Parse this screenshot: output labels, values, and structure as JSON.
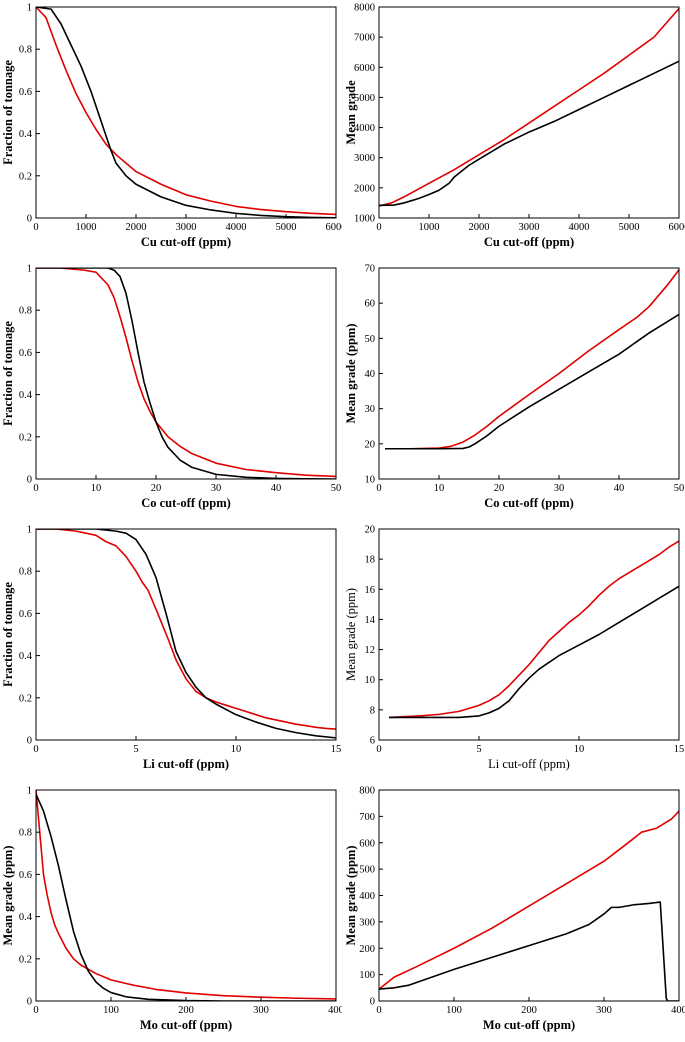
{
  "chart_data": [
    {
      "type": "line",
      "xlabel": "Cu cut-off (ppm)",
      "ylabel": "Fraction of tonnage",
      "xlim": [
        0,
        6000
      ],
      "ylim": [
        0,
        1
      ],
      "xticks": [
        0,
        1000,
        2000,
        3000,
        4000,
        5000,
        6000
      ],
      "yticks": [
        0,
        0.2,
        0.4,
        0.6,
        0.8,
        1
      ],
      "labels_bold": true,
      "series": [
        {
          "color": "#e00000",
          "x": [
            0,
            200,
            400,
            600,
            800,
            1000,
            1200,
            1400,
            1600,
            1800,
            2000,
            2500,
            3000,
            3500,
            4000,
            4500,
            5000,
            5500,
            6000
          ],
          "y": [
            1,
            0.95,
            0.82,
            0.7,
            0.59,
            0.5,
            0.42,
            0.35,
            0.3,
            0.26,
            0.22,
            0.16,
            0.11,
            0.08,
            0.055,
            0.04,
            0.03,
            0.022,
            0.017
          ]
        },
        {
          "color": "#000000",
          "x": [
            0,
            300,
            500,
            700,
            900,
            1100,
            1300,
            1500,
            1600,
            1800,
            2000,
            2500,
            3000,
            3500,
            4000,
            4500,
            5000,
            5500,
            6000
          ],
          "y": [
            1,
            0.99,
            0.92,
            0.82,
            0.72,
            0.6,
            0.46,
            0.32,
            0.26,
            0.2,
            0.16,
            0.1,
            0.06,
            0.038,
            0.022,
            0.012,
            0.006,
            0.003,
            0.001
          ]
        }
      ]
    },
    {
      "type": "line",
      "xlabel": "Cu cut-off (ppm)",
      "ylabel": "Mean grade",
      "xlim": [
        0,
        6000
      ],
      "ylim": [
        1000,
        8000
      ],
      "xticks": [
        0,
        1000,
        2000,
        3000,
        4000,
        5000,
        6000
      ],
      "yticks": [
        1000,
        2000,
        3000,
        4000,
        5000,
        6000,
        7000,
        8000
      ],
      "labels_bold": true,
      "series": [
        {
          "color": "#e00000",
          "x": [
            0,
            250,
            500,
            1000,
            1500,
            2000,
            2500,
            3000,
            3500,
            4000,
            4500,
            5000,
            5500,
            6000
          ],
          "y": [
            1400,
            1500,
            1700,
            2150,
            2600,
            3100,
            3600,
            4150,
            4700,
            5250,
            5800,
            6400,
            7000,
            7950
          ]
        },
        {
          "color": "#000000",
          "x": [
            0,
            300,
            500,
            800,
            1000,
            1200,
            1400,
            1500,
            1800,
            2000,
            2500,
            3000,
            3500,
            4000,
            4500,
            5000,
            5500,
            6000
          ],
          "y": [
            1420,
            1430,
            1500,
            1650,
            1780,
            1920,
            2150,
            2350,
            2750,
            2950,
            3450,
            3850,
            4200,
            4600,
            5000,
            5400,
            5800,
            6200
          ]
        }
      ]
    },
    {
      "type": "line",
      "xlabel": "Co cut-off (ppm)",
      "ylabel": "Fraction of tonnage",
      "xlim": [
        0,
        50
      ],
      "ylim": [
        0,
        1
      ],
      "xticks": [
        0,
        10,
        20,
        30,
        40,
        50
      ],
      "yticks": [
        0,
        0.2,
        0.4,
        0.6,
        0.8,
        1
      ],
      "labels_bold": true,
      "series": [
        {
          "color": "#e00000",
          "x": [
            0,
            4,
            8,
            10,
            12,
            13,
            14,
            15,
            16,
            17,
            18,
            19,
            20,
            22,
            24,
            26,
            30,
            35,
            40,
            45,
            50
          ],
          "y": [
            1,
            1,
            0.99,
            0.98,
            0.92,
            0.86,
            0.77,
            0.67,
            0.56,
            0.46,
            0.38,
            0.32,
            0.27,
            0.2,
            0.155,
            0.12,
            0.075,
            0.045,
            0.03,
            0.018,
            0.012
          ]
        },
        {
          "color": "#000000",
          "x": [
            0,
            5,
            10,
            12,
            13,
            14,
            15,
            16,
            17,
            18,
            19,
            20,
            21,
            22,
            24,
            26,
            30,
            35,
            40,
            45,
            50
          ],
          "y": [
            1,
            1,
            1,
            1,
            0.99,
            0.96,
            0.88,
            0.75,
            0.6,
            0.46,
            0.36,
            0.27,
            0.2,
            0.15,
            0.09,
            0.055,
            0.022,
            0.008,
            0.003,
            0.001,
            0
          ]
        }
      ]
    },
    {
      "type": "line",
      "xlabel": "Co cut-off (ppm)",
      "ylabel": "Mean grade (ppm)",
      "xlim": [
        0,
        50
      ],
      "ylim": [
        10,
        70
      ],
      "xticks": [
        0,
        10,
        20,
        30,
        40,
        50
      ],
      "yticks": [
        10,
        20,
        30,
        40,
        50,
        60,
        70
      ],
      "labels_bold": true,
      "series": [
        {
          "color": "#e00000",
          "x": [
            1,
            5,
            10,
            12,
            14,
            16,
            18,
            20,
            25,
            30,
            35,
            40,
            43,
            45,
            48,
            50
          ],
          "y": [
            18.6,
            18.6,
            18.8,
            19.3,
            20.5,
            22.5,
            25,
            27.8,
            34,
            40,
            46.5,
            52.5,
            56,
            59,
            65,
            69.5
          ]
        },
        {
          "color": "#000000",
          "x": [
            1,
            5,
            10,
            14,
            15,
            16,
            18,
            20,
            25,
            30,
            35,
            40,
            45,
            50
          ],
          "y": [
            18.6,
            18.6,
            18.6,
            18.7,
            19.1,
            20,
            22.3,
            25,
            30.5,
            35.5,
            40.5,
            45.5,
            51.5,
            56.8
          ]
        }
      ]
    },
    {
      "type": "line",
      "xlabel": "Li cut-off (ppm)",
      "ylabel": "Fraction of tonnage",
      "xlim": [
        0,
        15
      ],
      "ylim": [
        0,
        1
      ],
      "xticks": [
        0,
        5,
        10,
        15
      ],
      "yticks": [
        0,
        0.2,
        0.4,
        0.6,
        0.8,
        1
      ],
      "labels_bold": true,
      "series": [
        {
          "color": "#e00000",
          "x": [
            0,
            1,
            2,
            2.5,
            3,
            3.5,
            4,
            4.5,
            5,
            5.3,
            5.6,
            6,
            6.3,
            6.6,
            7,
            7.5,
            8,
            8.5,
            9,
            9.5,
            10,
            10.5,
            11,
            11.5,
            12,
            12.5,
            13,
            13.5,
            14,
            14.5,
            15
          ],
          "y": [
            1,
            1,
            0.99,
            0.98,
            0.97,
            0.94,
            0.92,
            0.87,
            0.8,
            0.75,
            0.71,
            0.62,
            0.55,
            0.48,
            0.38,
            0.29,
            0.23,
            0.2,
            0.18,
            0.165,
            0.15,
            0.135,
            0.12,
            0.105,
            0.095,
            0.085,
            0.075,
            0.068,
            0.06,
            0.055,
            0.052
          ]
        },
        {
          "color": "#000000",
          "x": [
            0,
            2,
            3,
            4,
            4.5,
            5,
            5.5,
            6,
            6.5,
            7,
            7.5,
            8,
            8.5,
            9,
            10,
            11,
            12,
            13,
            14,
            15
          ],
          "y": [
            1,
            1,
            1,
            0.99,
            0.98,
            0.95,
            0.88,
            0.77,
            0.6,
            0.42,
            0.32,
            0.25,
            0.2,
            0.17,
            0.12,
            0.085,
            0.055,
            0.035,
            0.02,
            0.01
          ]
        }
      ]
    },
    {
      "type": "line",
      "xlabel": "Li cut-off (ppm)",
      "ylabel": "Mean grade (ppm)",
      "xlim": [
        0,
        15
      ],
      "ylim": [
        6,
        20
      ],
      "xticks": [
        0,
        5,
        10,
        15
      ],
      "yticks": [
        6,
        8,
        10,
        12,
        14,
        16,
        18,
        20
      ],
      "labels_bold": false,
      "series": [
        {
          "color": "#e00000",
          "x": [
            0.5,
            2,
            3,
            3.5,
            4,
            4.5,
            5,
            5.5,
            6,
            6.5,
            7,
            7.5,
            8,
            8.5,
            9,
            9.5,
            10,
            10.5,
            11,
            11.5,
            12,
            12.5,
            13,
            13.5,
            14,
            14.5,
            15
          ],
          "y": [
            7.5,
            7.6,
            7.7,
            7.8,
            7.9,
            8.1,
            8.3,
            8.6,
            9,
            9.6,
            10.3,
            11,
            11.8,
            12.6,
            13.2,
            13.8,
            14.3,
            14.9,
            15.6,
            16.2,
            16.7,
            17.1,
            17.5,
            17.9,
            18.3,
            18.8,
            19.2
          ]
        },
        {
          "color": "#000000",
          "x": [
            0.5,
            2,
            3,
            4,
            5,
            5.5,
            6,
            6.5,
            7,
            7.5,
            8,
            9,
            10,
            11,
            12,
            13,
            14,
            15
          ],
          "y": [
            7.5,
            7.5,
            7.5,
            7.5,
            7.6,
            7.8,
            8.1,
            8.6,
            9.4,
            10.1,
            10.7,
            11.6,
            12.3,
            13,
            13.8,
            14.6,
            15.4,
            16.2
          ]
        }
      ]
    },
    {
      "type": "line",
      "xlabel": "Mo cut-off (ppm)",
      "ylabel": "Mean grade (ppm)",
      "xlim": [
        0,
        400
      ],
      "ylim": [
        0,
        1
      ],
      "xticks": [
        0,
        100,
        200,
        300,
        400
      ],
      "yticks": [
        0,
        0.2,
        0.4,
        0.6,
        0.8,
        1
      ],
      "labels_bold": true,
      "series": [
        {
          "color": "#e00000",
          "x": [
            0,
            5,
            10,
            15,
            20,
            25,
            30,
            40,
            50,
            60,
            80,
            100,
            130,
            160,
            200,
            250,
            300,
            350,
            400
          ],
          "y": [
            1,
            0.8,
            0.6,
            0.5,
            0.42,
            0.36,
            0.32,
            0.25,
            0.2,
            0.17,
            0.13,
            0.1,
            0.075,
            0.055,
            0.038,
            0.025,
            0.018,
            0.013,
            0.01
          ]
        },
        {
          "color": "#000000",
          "x": [
            0,
            10,
            20,
            30,
            40,
            50,
            60,
            70,
            80,
            90,
            100,
            120,
            150,
            200,
            250,
            300,
            400
          ],
          "y": [
            0.98,
            0.9,
            0.78,
            0.64,
            0.48,
            0.33,
            0.22,
            0.14,
            0.09,
            0.06,
            0.04,
            0.02,
            0.008,
            0.002,
            0,
            0,
            0
          ]
        }
      ]
    },
    {
      "type": "line",
      "xlabel": "Mo cut-off (ppm)",
      "ylabel": "Mean grade (ppm)",
      "xlim": [
        0,
        400
      ],
      "ylim": [
        0,
        800
      ],
      "xticks": [
        0,
        100,
        200,
        300,
        400
      ],
      "yticks": [
        0,
        100,
        200,
        300,
        400,
        500,
        600,
        700,
        800
      ],
      "labels_bold": true,
      "series": [
        {
          "color": "#e00000",
          "x": [
            0,
            20,
            50,
            100,
            150,
            200,
            250,
            300,
            330,
            350,
            370,
            390,
            400
          ],
          "y": [
            45,
            90,
            130,
            200,
            275,
            360,
            445,
            530,
            595,
            640,
            655,
            690,
            720
          ]
        },
        {
          "color": "#000000",
          "x": [
            0,
            20,
            40,
            60,
            100,
            150,
            200,
            250,
            280,
            300,
            310,
            320,
            340,
            360,
            375,
            383,
            385,
            400
          ],
          "y": [
            45,
            50,
            60,
            80,
            120,
            165,
            210,
            255,
            290,
            330,
            355,
            355,
            365,
            370,
            375,
            10,
            0,
            0
          ]
        }
      ]
    }
  ]
}
